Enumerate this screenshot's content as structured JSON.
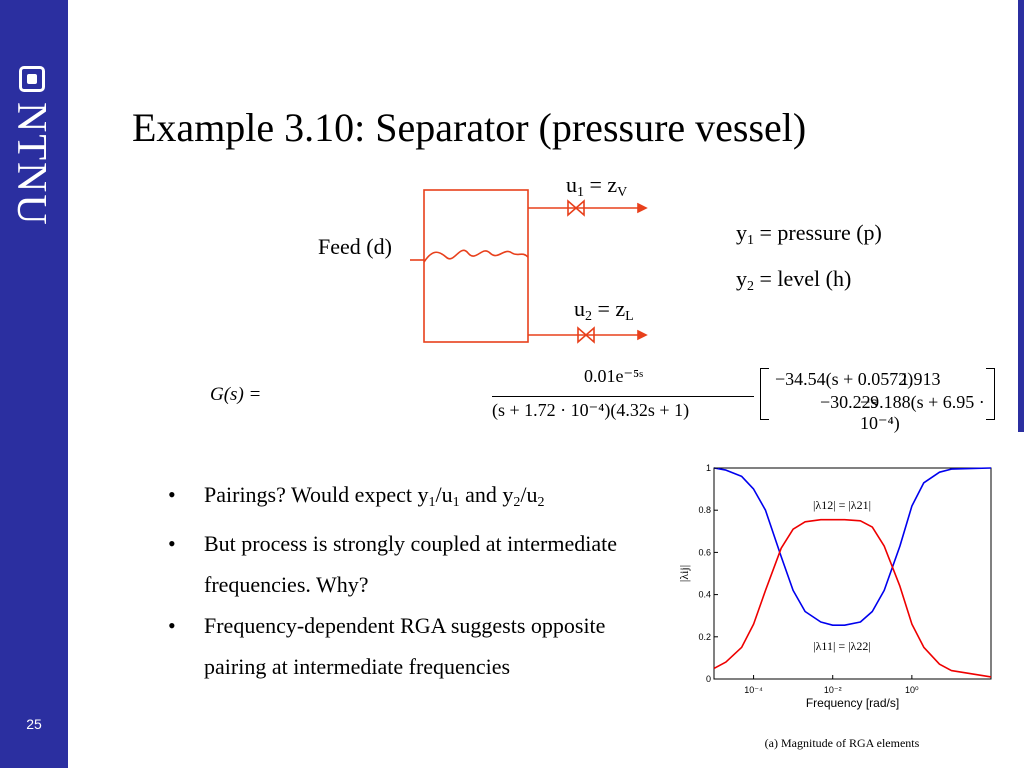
{
  "brand": {
    "name": "NTNU",
    "logo_icon": "ntnu-logo-icon"
  },
  "slide_number": "25",
  "title": "Example 3.10: Separator (pressure vessel)",
  "diagram": {
    "feed_label": "Feed (d)",
    "u1_main": "u",
    "u1_sub": "1",
    "u1_eq": " = z",
    "u1_eq_sub": "V",
    "u2_main": "u",
    "u2_sub": "2",
    "u2_eq": "  = z",
    "u2_eq_sub": "L",
    "y1_main": "y",
    "y1_sub": "1",
    "y1_rest": " = pressure (p)",
    "y2_main": "y",
    "y2_sub": "2",
    "y2_rest": " = level (h)",
    "line_color": "#e8401c"
  },
  "formula": {
    "lhs": "G(s) =",
    "numerator": "0.01e⁻⁵ˢ",
    "denominator": "(s + 1.72 · 10⁻⁴)(4.32s + 1)",
    "m11": "−34.54(s + 0.0572)",
    "m12": "1.913",
    "m21": "−30.22s",
    "m22": "−9.188(s + 6.95 · 10⁻⁴)"
  },
  "bullets": {
    "b1_pre": "Pairings? Would expect y",
    "b1_s1": "1",
    "b1_mid1": "/u",
    "b1_s2": "1",
    "b1_mid2": " and y",
    "b1_s3": "2",
    "b1_mid3": "/u",
    "b1_s4": "2",
    "b2": "But process is strongly coupled at intermediate frequencies. Why?",
    "b3": "Frequency-dependent RGA suggests opposite pairing at intermediate frequencies"
  },
  "chart_data": {
    "type": "line",
    "title": "",
    "caption": "(a) Magnitude of RGA elements",
    "xlabel": "Frequency [rad/s]",
    "ylabel": "|λij|",
    "x_scale": "log",
    "xlim": [
      1e-05,
      100
    ],
    "ylim": [
      0,
      1
    ],
    "x_ticks": [
      0.0001,
      0.01,
      1
    ],
    "x_tick_labels": [
      "10⁻⁴",
      "10⁻²",
      "10⁰"
    ],
    "y_ticks": [
      0,
      0.2,
      0.4,
      0.6,
      0.8,
      1
    ],
    "y_tick_labels": [
      "0",
      "0.2",
      "0.4",
      "0.6",
      "0.8",
      "1"
    ],
    "annotations": [
      "|λ12| = |λ21|",
      "|λ11| = |λ22|"
    ],
    "series": [
      {
        "color": "#0000ee",
        "x": [
          1e-05,
          2e-05,
          5e-05,
          0.0001,
          0.0002,
          0.0005,
          0.001,
          0.002,
          0.005,
          0.01,
          0.02,
          0.05,
          0.1,
          0.2,
          0.5,
          1,
          2,
          5,
          10,
          100
        ],
        "y": [
          1.0,
          0.99,
          0.96,
          0.9,
          0.8,
          0.58,
          0.42,
          0.32,
          0.27,
          0.255,
          0.255,
          0.27,
          0.32,
          0.42,
          0.63,
          0.82,
          0.93,
          0.98,
          0.995,
          1.0
        ]
      },
      {
        "color": "#ee0000",
        "x": [
          1e-05,
          2e-05,
          5e-05,
          0.0001,
          0.0002,
          0.0005,
          0.001,
          0.002,
          0.005,
          0.01,
          0.02,
          0.05,
          0.1,
          0.2,
          0.5,
          1,
          2,
          5,
          10,
          100
        ],
        "y": [
          0.05,
          0.08,
          0.15,
          0.26,
          0.42,
          0.62,
          0.71,
          0.745,
          0.755,
          0.755,
          0.755,
          0.75,
          0.72,
          0.63,
          0.44,
          0.26,
          0.15,
          0.07,
          0.04,
          0.01
        ]
      }
    ]
  }
}
